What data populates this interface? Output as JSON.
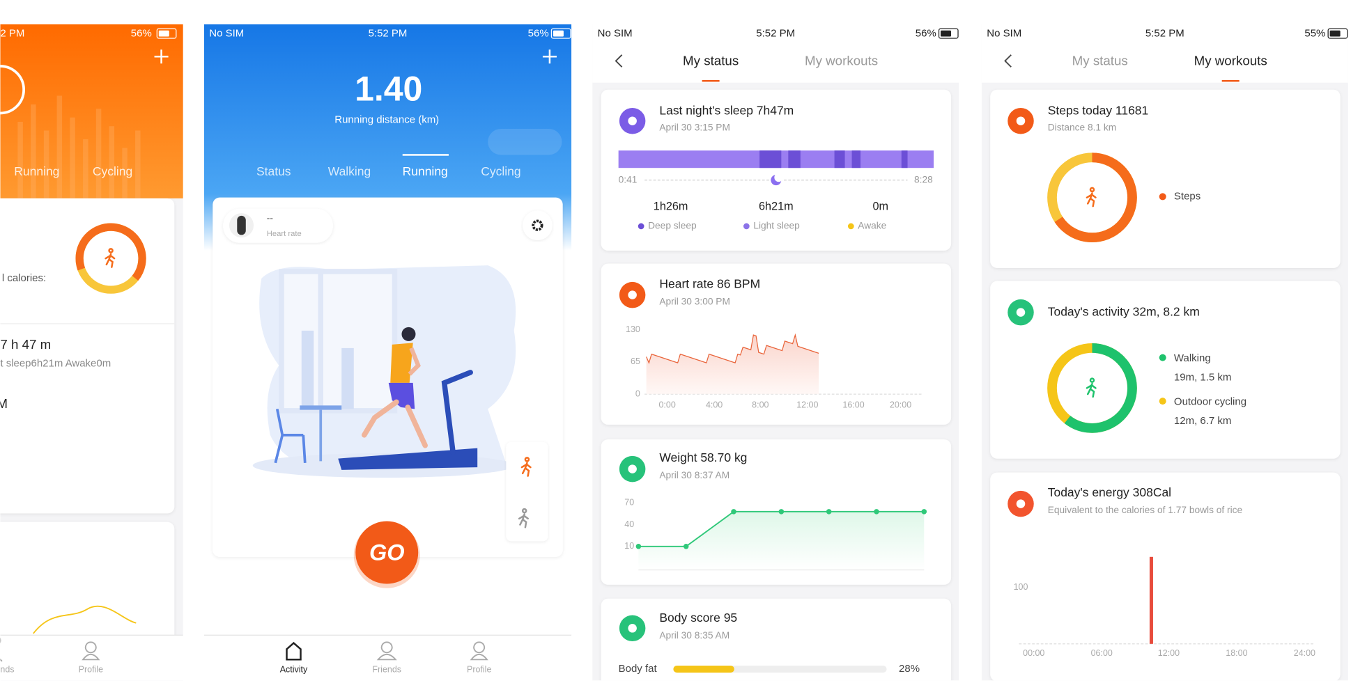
{
  "screens": [
    {
      "time": "2 PM",
      "battery": "56%",
      "tabs": [
        "Running",
        "Cycling"
      ],
      "calories_label": "l calories:",
      "sleep_total": "7 h 47 m",
      "sleep_detail": "t sleep6h21m Awake0m",
      "sleep_extra": "M",
      "nav": [
        "nds",
        "Profile"
      ]
    },
    {
      "carrier": "No SIM",
      "time": "5:52 PM",
      "battery": "56%",
      "distance": "1.40",
      "distance_label": "Running distance (km)",
      "tabs": [
        "Status",
        "Walking",
        "Running",
        "Cycling"
      ],
      "heart_value": "--",
      "heart_label": "Heart rate",
      "go": "GO",
      "nav": [
        "Activity",
        "Friends",
        "Profile"
      ]
    },
    {
      "carrier": "No SIM",
      "time": "5:52 PM",
      "battery": "56%",
      "tabs": [
        "My status",
        "My workouts"
      ],
      "sleep": {
        "title": "Last night's sleep 7h47m",
        "date": "April 30 3:15 PM",
        "start": "0:41",
        "end": "8:28",
        "stats": [
          {
            "value": "1h26m",
            "label": "Deep sleep"
          },
          {
            "value": "6h21m",
            "label": "Light sleep"
          },
          {
            "value": "0m",
            "label": "Awake"
          }
        ]
      },
      "heart": {
        "title": "Heart rate 86  BPM",
        "date": "April 30 3:00 PM",
        "ylim": [
          0,
          130
        ],
        "yticks": [
          130,
          65,
          0
        ],
        "xticks": [
          "0:00",
          "4:00",
          "8:00",
          "12:00",
          "16:00",
          "20:00"
        ]
      },
      "weight": {
        "title": "Weight 58.70 kg",
        "date": "April 30 8:37 AM",
        "ylim": [
          10,
          70
        ],
        "yticks": [
          70,
          40,
          10
        ],
        "values": [
          10,
          10,
          58,
          58,
          58,
          58,
          58
        ]
      },
      "body": {
        "title": "Body score 95",
        "date": "April 30 8:35 AM",
        "metric": "Body fat",
        "percent": "28%"
      }
    },
    {
      "carrier": "No SIM",
      "time": "5:52 PM",
      "battery": "55%",
      "tabs": [
        "My status",
        "My workouts"
      ],
      "steps": {
        "title": "Steps today 11681",
        "subtitle": "Distance 8.1 km",
        "legend": "Steps"
      },
      "activity": {
        "title": "Today's activity 32m,  8.2 km",
        "items": [
          {
            "label": "Walking",
            "detail": "19m,  1.5 km"
          },
          {
            "label": "Outdoor cycling",
            "detail": "12m,  6.7 km"
          }
        ]
      },
      "energy": {
        "title": "Today's energy 308Cal",
        "subtitle": "Equivalent to the calories of 1.77 bowls of rice",
        "yticks": [
          "100"
        ],
        "xticks": [
          "00:00",
          "06:00",
          "12:00",
          "18:00",
          "24:00"
        ]
      }
    }
  ]
}
